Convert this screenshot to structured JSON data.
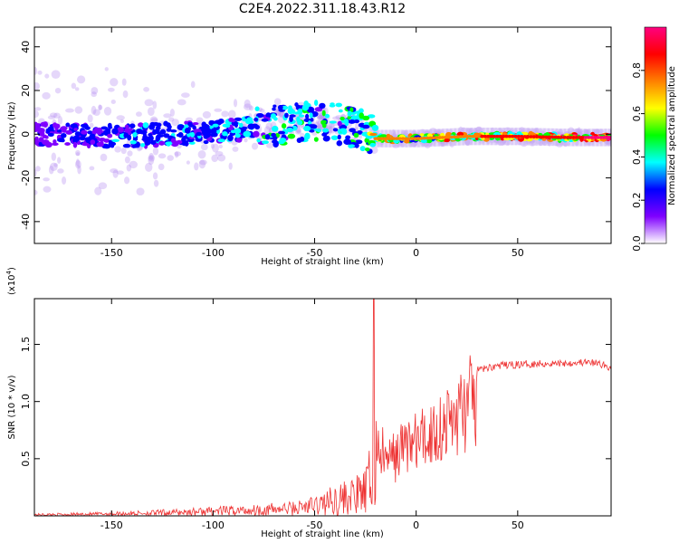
{
  "title": "C2E4.2022.311.18.43.R12",
  "chart_data": [
    {
      "type": "heatmap",
      "xlabel": "Height of straight line (km)",
      "ylabel": "Frequency (Hz)",
      "xlim": [
        -188,
        96
      ],
      "ylim": [
        -50,
        49
      ],
      "xticks": [
        -150,
        -100,
        -50,
        0,
        50
      ],
      "yticks": [
        -40,
        -20,
        0,
        20,
        40
      ],
      "colorbar": {
        "label": "Normalized spectral amplitude",
        "range": [
          0,
          1
        ],
        "ticks": [
          "0.0",
          "0.2",
          "0.4",
          "0.6",
          "0.8"
        ],
        "colors": [
          "#ffffff",
          "#7f00ff",
          "#0000ff",
          "#00ffff",
          "#00ff00",
          "#ffff00",
          "#ff8000",
          "#ff0000",
          "#ff0080"
        ]
      },
      "ridge": {
        "x": [
          -188,
          -150,
          -120,
          -100,
          -80,
          -60,
          -45,
          -35,
          -25,
          -20,
          0,
          25,
          50,
          75,
          96
        ],
        "frequency": [
          0,
          -1,
          0,
          1,
          3,
          5,
          6,
          4,
          2,
          -2,
          -2,
          -1,
          -1,
          -1.5,
          -1.5
        ],
        "amplitude": [
          0.2,
          0.25,
          0.3,
          0.3,
          0.35,
          0.4,
          0.4,
          0.4,
          0.45,
          0.6,
          0.6,
          0.7,
          0.75,
          0.8,
          0.9
        ]
      }
    },
    {
      "type": "line",
      "xlabel": "Height of straight line (km)",
      "ylabel": "SNR (10 * v/v)",
      "scale_label": "(x10",
      "scale_exp": "4",
      "scale_close": ")",
      "xlim": [
        -188,
        96
      ],
      "ylim": [
        0,
        1.9
      ],
      "xticks": [
        -150,
        -100,
        -50,
        0,
        50
      ],
      "yticks": [
        "0.5",
        "1.0",
        "1.5"
      ],
      "ytick_values": [
        0.5,
        1.0,
        1.5
      ],
      "color": "#ee3333",
      "envelope": {
        "x": [
          -188,
          -160,
          -130,
          -100,
          -80,
          -60,
          -50,
          -40,
          -30,
          -25,
          -21,
          -18,
          -15,
          -10,
          -5,
          0,
          5,
          10,
          15,
          20,
          25,
          30,
          40,
          50,
          60,
          70,
          80,
          90,
          96
        ],
        "y": [
          0.02,
          0.03,
          0.05,
          0.08,
          0.1,
          0.13,
          0.18,
          0.28,
          0.35,
          0.4,
          0.8,
          0.75,
          0.6,
          0.65,
          0.8,
          0.8,
          0.85,
          0.95,
          1.0,
          1.1,
          1.2,
          1.28,
          1.32,
          1.33,
          1.34,
          1.34,
          1.35,
          1.34,
          1.3
        ]
      }
    }
  ]
}
